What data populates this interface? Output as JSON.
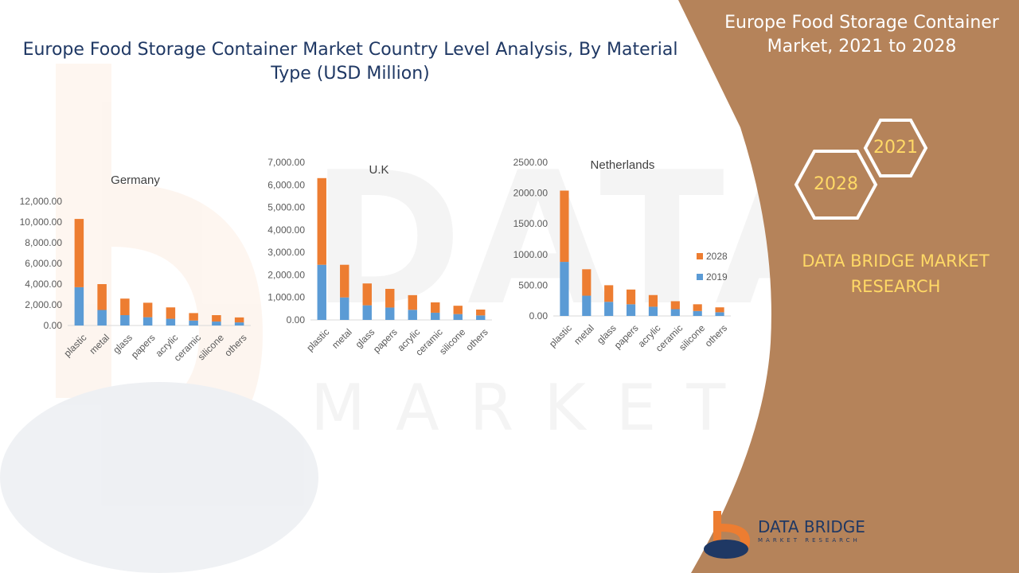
{
  "page": {
    "title": "Europe Food Storage Container Market Country Level Analysis, By Material Type (USD Million)",
    "side_title": "Europe Food Storage Container Market, 2021 to 2028",
    "year_a": "2021",
    "year_b": "2028",
    "brand": "DATA BRIDGE MARKET RESEARCH",
    "logo_name": "DATA BRIDGE",
    "logo_sub": "MARKET RESEARCH"
  },
  "colors": {
    "series_2019": "#5b9bd5",
    "series_2028": "#ed7d31",
    "side_panel": "#b5835a",
    "title": "#1f3864",
    "accent": "#ffd966"
  },
  "chart_data": [
    {
      "type": "bar",
      "stacked": true,
      "title": "Germany",
      "categories": [
        "plastic",
        "metal",
        "glass",
        "papers",
        "acrylic",
        "ceramic",
        "silicone",
        "others"
      ],
      "series": [
        {
          "name": "2019",
          "values": [
            3700,
            1500,
            1000,
            800,
            650,
            480,
            380,
            300
          ]
        },
        {
          "name": "2028",
          "values": [
            6600,
            2500,
            1600,
            1400,
            1100,
            720,
            620,
            480
          ]
        }
      ],
      "ylim": [
        0,
        12000
      ],
      "yticks": [
        "0.00",
        "2,000.00",
        "4,000.00",
        "6,000.00",
        "8,000.00",
        "10,000.00",
        "12,000.00"
      ],
      "legend": "none"
    },
    {
      "type": "bar",
      "stacked": true,
      "title": "U.K",
      "categories": [
        "plastic",
        "metal",
        "glass",
        "papers",
        "acrylic",
        "ceramic",
        "silicone",
        "others"
      ],
      "series": [
        {
          "name": "2019",
          "values": [
            2450,
            1000,
            650,
            550,
            450,
            320,
            260,
            200
          ]
        },
        {
          "name": "2028",
          "values": [
            3850,
            1450,
            970,
            830,
            650,
            460,
            370,
            260
          ]
        }
      ],
      "ylim": [
        0,
        7000
      ],
      "yticks": [
        "0.00",
        "1,000.00",
        "2,000.00",
        "3,000.00",
        "4,000.00",
        "5,000.00",
        "6,000.00",
        "7,000.00"
      ],
      "legend": "none"
    },
    {
      "type": "bar",
      "stacked": true,
      "title": "Netherlands",
      "categories": [
        "plastic",
        "metal",
        "glass",
        "papers",
        "acrylic",
        "ceramic",
        "silicone",
        "others"
      ],
      "series": [
        {
          "name": "2019",
          "values": [
            880,
            330,
            230,
            190,
            150,
            110,
            80,
            60
          ]
        },
        {
          "name": "2028",
          "values": [
            1160,
            430,
            270,
            240,
            190,
            130,
            110,
            80
          ]
        }
      ],
      "ylim": [
        0,
        2500
      ],
      "yticks": [
        "0.00",
        "500.00",
        "1000.00",
        "1500.00",
        "2000.00",
        "2500.00"
      ],
      "legend": "right"
    }
  ]
}
